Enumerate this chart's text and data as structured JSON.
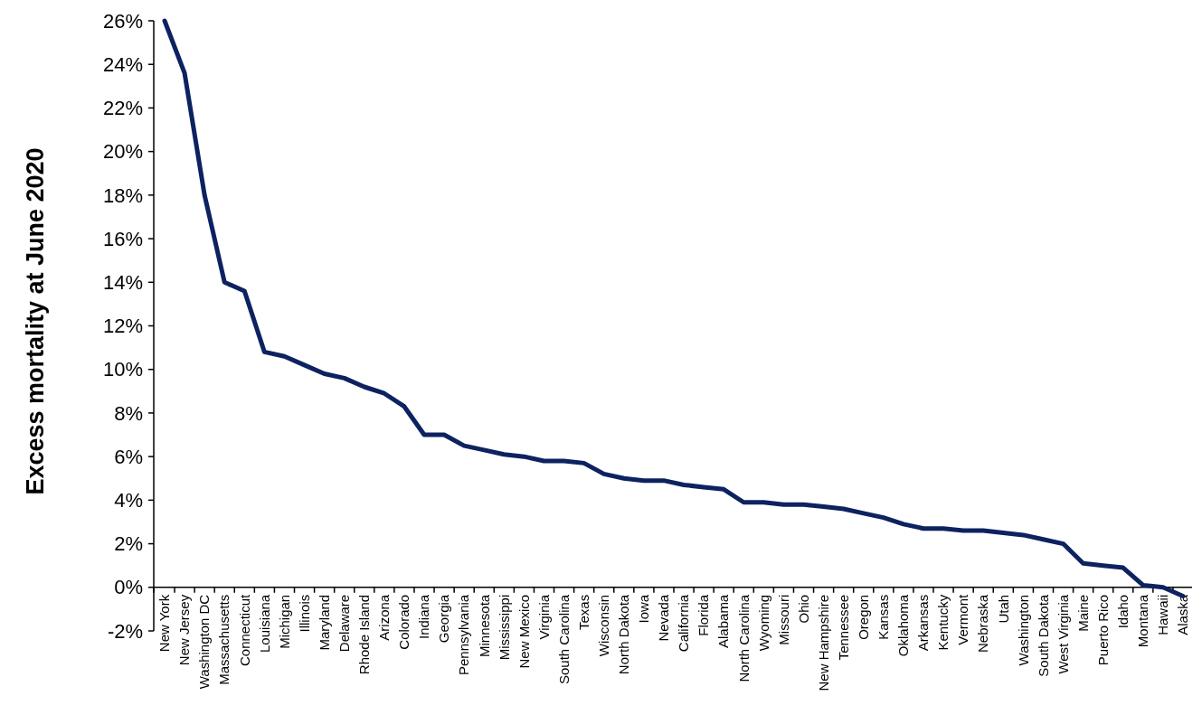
{
  "chart_data": {
    "type": "line",
    "ylabel": "Excess mortality at June 2020",
    "categories": [
      "New York",
      "New Jersey",
      "Washington DC",
      "Massachusetts",
      "Connecticut",
      "Louisiana",
      "Michigan",
      "Illinois",
      "Maryland",
      "Delaware",
      "Rhode Island",
      "Arizona",
      "Colorado",
      "Indiana",
      "Georgia",
      "Pennsylvania",
      "Minnesota",
      "Mississippi",
      "New Mexico",
      "Virginia",
      "South Carolina",
      "Texas",
      "Wisconsin",
      "North Dakota",
      "Iowa",
      "Nevada",
      "California",
      "Florida",
      "Alabama",
      "North Carolina",
      "Wyoming",
      "Missouri",
      "Ohio",
      "New Hampshire",
      "Tennessee",
      "Oregon",
      "Kansas",
      "Oklahoma",
      "Arkansas",
      "Kentucky",
      "Vermont",
      "Nebraska",
      "Utah",
      "Washington",
      "South Dakota",
      "West Virginia",
      "Maine",
      "Puerto Rico",
      "Idaho",
      "Montana",
      "Hawaii",
      "Alaska"
    ],
    "series": [
      {
        "color": "#0d2260",
        "values": [
          26,
          23.6,
          18.0,
          14.0,
          13.6,
          10.8,
          10.6,
          10.2,
          9.8,
          9.6,
          9.2,
          8.9,
          8.3,
          7.0,
          7.0,
          6.5,
          6.3,
          6.1,
          6.0,
          5.8,
          5.8,
          5.7,
          5.2,
          5.0,
          4.9,
          4.9,
          4.7,
          4.6,
          4.5,
          3.9,
          3.9,
          3.8,
          3.8,
          3.7,
          3.6,
          3.4,
          3.2,
          2.9,
          2.7,
          2.7,
          2.6,
          2.6,
          2.5,
          2.4,
          2.2,
          2.0,
          1.1,
          1.0,
          0.9,
          0.1,
          0.0,
          -0.4
        ]
      }
    ],
    "ylim": [
      -2,
      26
    ],
    "yticks": [
      {
        "value": -2,
        "label": "-2%"
      },
      {
        "value": 0,
        "label": "0%"
      },
      {
        "value": 2,
        "label": "2%"
      },
      {
        "value": 4,
        "label": "4%"
      },
      {
        "value": 6,
        "label": "6%"
      },
      {
        "value": 8,
        "label": "8%"
      },
      {
        "value": 10,
        "label": "10%"
      },
      {
        "value": 12,
        "label": "12%"
      },
      {
        "value": 14,
        "label": "14%"
      },
      {
        "value": 16,
        "label": "16%"
      },
      {
        "value": 18,
        "label": "18%"
      },
      {
        "value": 20,
        "label": "20%"
      },
      {
        "value": 22,
        "label": "22%"
      },
      {
        "value": 24,
        "label": "24%"
      },
      {
        "value": 26,
        "label": "26%"
      }
    ],
    "grid": false,
    "marker": "none",
    "line_style": "solid"
  }
}
